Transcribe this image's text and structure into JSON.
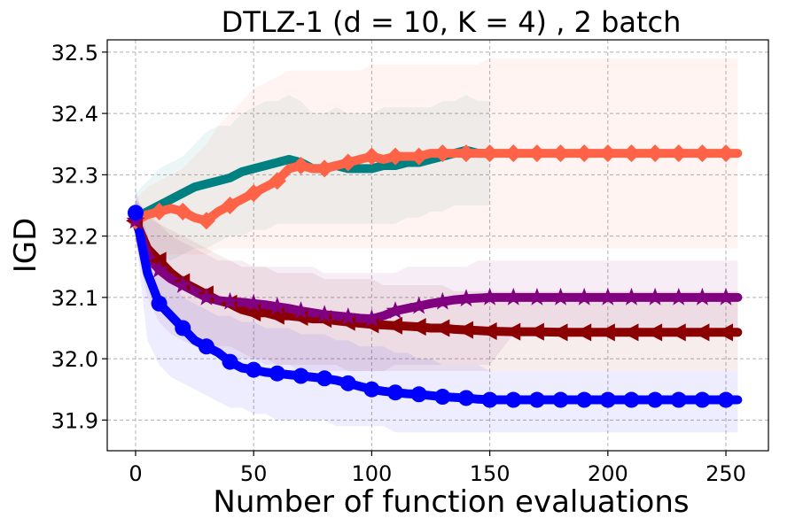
{
  "chart_data": {
    "type": "line",
    "title": "DTLZ-1 (d = 10, K = 4) , 2 batch",
    "xlabel": "Number of function evaluations",
    "ylabel": "IGD",
    "xlim": [
      -12,
      268
    ],
    "ylim": [
      31.85,
      32.52
    ],
    "xticks": [
      0,
      50,
      100,
      150,
      200,
      250
    ],
    "yticks": [
      31.9,
      32.0,
      32.1,
      32.2,
      32.3,
      32.4,
      32.5
    ],
    "xtick_labels": [
      "0",
      "50",
      "100",
      "150",
      "200",
      "250"
    ],
    "ytick_labels": [
      "31.9",
      "32.0",
      "32.1",
      "32.2",
      "32.3",
      "32.4",
      "32.5"
    ],
    "grid": true,
    "series": [
      {
        "name": "teal",
        "color": "#008080",
        "marker": "none",
        "x": [
          0,
          5,
          10,
          15,
          20,
          25,
          30,
          35,
          40,
          45,
          50,
          55,
          60,
          65,
          70,
          75,
          80,
          85,
          90,
          95,
          100,
          105,
          110,
          115,
          120,
          125,
          130,
          135,
          140,
          145,
          150
        ],
        "y": [
          32.23,
          32.24,
          32.25,
          32.26,
          32.27,
          32.28,
          32.285,
          32.29,
          32.295,
          32.305,
          32.31,
          32.315,
          32.32,
          32.325,
          32.32,
          32.31,
          32.31,
          32.315,
          32.31,
          32.31,
          32.31,
          32.315,
          32.315,
          32.32,
          32.32,
          32.325,
          32.33,
          32.335,
          32.34,
          32.335,
          32.335
        ],
        "band_lower": [
          32.2,
          32.18,
          32.17,
          32.16,
          32.17,
          32.18,
          32.18,
          32.19,
          32.2,
          32.2,
          32.21,
          32.21,
          32.22,
          32.22,
          32.22,
          32.22,
          32.22,
          32.22,
          32.22,
          32.22,
          32.22,
          32.22,
          32.22,
          32.23,
          32.23,
          32.24,
          32.24,
          32.25,
          32.25,
          32.25,
          32.25
        ],
        "band_upper": [
          32.27,
          32.29,
          32.31,
          32.32,
          32.33,
          32.35,
          32.37,
          32.38,
          32.38,
          32.4,
          32.41,
          32.42,
          32.42,
          32.43,
          32.42,
          32.4,
          32.4,
          32.41,
          32.4,
          32.4,
          32.4,
          32.41,
          32.41,
          32.41,
          32.41,
          32.41,
          32.42,
          32.42,
          32.43,
          32.42,
          32.42
        ]
      },
      {
        "name": "coral",
        "color": "#FF6347",
        "marker": "diamond",
        "x": [
          0,
          5,
          10,
          15,
          20,
          25,
          30,
          35,
          40,
          45,
          50,
          55,
          60,
          65,
          70,
          75,
          80,
          85,
          90,
          95,
          100,
          105,
          110,
          115,
          120,
          125,
          130,
          135,
          140,
          145,
          150,
          160,
          170,
          180,
          190,
          200,
          210,
          220,
          230,
          240,
          250,
          255
        ],
        "y": [
          32.225,
          32.235,
          32.24,
          32.245,
          32.24,
          32.23,
          32.225,
          32.24,
          32.25,
          32.26,
          32.27,
          32.28,
          32.29,
          32.31,
          32.315,
          32.31,
          32.31,
          32.315,
          32.32,
          32.325,
          32.33,
          32.325,
          32.33,
          32.33,
          32.33,
          32.335,
          32.335,
          32.335,
          32.335,
          32.335,
          32.335,
          32.335,
          32.335,
          32.335,
          32.335,
          32.335,
          32.335,
          32.335,
          32.335,
          32.335,
          32.335,
          32.335
        ],
        "band_lower": [
          32.19,
          32.18,
          32.17,
          32.17,
          32.17,
          32.17,
          32.17,
          32.18,
          32.18,
          32.18,
          32.18,
          32.18,
          32.18,
          32.18,
          32.18,
          32.18,
          32.18,
          32.18,
          32.18,
          32.18,
          32.18,
          32.18,
          32.18,
          32.18,
          32.18,
          32.18,
          32.18,
          32.18,
          32.18,
          32.18,
          32.18,
          32.18,
          32.18,
          32.18,
          32.18,
          32.18,
          32.18,
          32.18,
          32.18,
          32.18,
          32.18,
          32.18
        ],
        "band_upper": [
          32.26,
          32.28,
          32.29,
          32.3,
          32.31,
          32.33,
          32.35,
          32.38,
          32.4,
          32.42,
          32.44,
          32.45,
          32.46,
          32.47,
          32.47,
          32.47,
          32.47,
          32.47,
          32.47,
          32.47,
          32.48,
          32.48,
          32.48,
          32.48,
          32.48,
          32.48,
          32.48,
          32.48,
          32.48,
          32.48,
          32.49,
          32.49,
          32.49,
          32.49,
          32.49,
          32.49,
          32.49,
          32.49,
          32.49,
          32.49,
          32.49,
          32.49
        ]
      },
      {
        "name": "darkred",
        "color": "#8B0000",
        "marker": "triangle-left",
        "x": [
          0,
          5,
          10,
          15,
          20,
          25,
          30,
          35,
          40,
          45,
          50,
          55,
          60,
          65,
          70,
          75,
          80,
          85,
          90,
          95,
          100,
          105,
          110,
          115,
          120,
          125,
          130,
          135,
          140,
          145,
          150,
          160,
          170,
          180,
          190,
          200,
          210,
          220,
          230,
          240,
          250,
          255
        ],
        "y": [
          32.225,
          32.18,
          32.16,
          32.14,
          32.125,
          32.115,
          32.105,
          32.095,
          32.09,
          32.08,
          32.075,
          32.075,
          32.07,
          32.07,
          32.068,
          32.065,
          32.065,
          32.062,
          32.06,
          32.058,
          32.056,
          32.055,
          32.054,
          32.053,
          32.052,
          32.05,
          32.05,
          32.048,
          32.047,
          32.046,
          32.045,
          32.044,
          32.044,
          32.043,
          32.043,
          32.043,
          32.043,
          32.043,
          32.043,
          32.043,
          32.043,
          32.043
        ],
        "band_lower": [
          32.19,
          32.13,
          32.1,
          32.07,
          32.05,
          32.04,
          32.03,
          32.02,
          32.02,
          32.01,
          32.0,
          32.0,
          31.99,
          31.99,
          31.99,
          31.99,
          31.99,
          31.99,
          31.98,
          31.98,
          31.98,
          31.98,
          31.98,
          31.98,
          31.98,
          31.98,
          31.98,
          31.98,
          31.98,
          31.98,
          31.98,
          31.98,
          31.98,
          31.98,
          31.98,
          31.98,
          31.98,
          31.98,
          31.98,
          31.98,
          31.98,
          31.98
        ],
        "band_upper": [
          32.26,
          32.24,
          32.22,
          32.21,
          32.2,
          32.19,
          32.18,
          32.17,
          32.16,
          32.15,
          32.15,
          32.15,
          32.14,
          32.14,
          32.14,
          32.14,
          32.13,
          32.13,
          32.13,
          32.13,
          32.13,
          32.12,
          32.12,
          32.12,
          32.12,
          32.12,
          32.12,
          32.11,
          32.11,
          32.11,
          32.11,
          32.11,
          32.11,
          32.11,
          32.11,
          32.11,
          32.11,
          32.11,
          32.11,
          32.11,
          32.11,
          32.11
        ]
      },
      {
        "name": "purple",
        "color": "#800080",
        "marker": "star",
        "x": [
          0,
          5,
          10,
          15,
          20,
          25,
          30,
          35,
          40,
          45,
          50,
          55,
          60,
          65,
          70,
          75,
          80,
          85,
          90,
          95,
          100,
          105,
          110,
          115,
          120,
          125,
          130,
          135,
          140,
          145,
          150,
          160,
          170,
          180,
          190,
          200,
          210,
          220,
          230,
          240,
          250,
          255
        ],
        "y": [
          32.225,
          32.17,
          32.145,
          32.13,
          32.12,
          32.11,
          32.1,
          32.095,
          32.093,
          32.092,
          32.09,
          32.088,
          32.085,
          32.082,
          32.078,
          32.075,
          32.072,
          32.07,
          32.068,
          32.066,
          32.065,
          32.07,
          32.078,
          32.082,
          32.086,
          32.09,
          32.093,
          32.096,
          32.098,
          32.099,
          32.1,
          32.1,
          32.1,
          32.1,
          32.1,
          32.1,
          32.1,
          32.1,
          32.1,
          32.1,
          32.1,
          32.1
        ],
        "band_lower": [
          32.19,
          32.1,
          32.06,
          32.04,
          32.03,
          32.02,
          32.01,
          32.01,
          32.0,
          32.0,
          32.0,
          31.99,
          31.99,
          31.99,
          31.98,
          31.98,
          31.98,
          31.98,
          31.98,
          31.98,
          31.98,
          31.98,
          31.99,
          31.99,
          31.99,
          31.99,
          31.99,
          31.99,
          31.99,
          31.99,
          31.99,
          32.04,
          32.04,
          32.04,
          32.04,
          32.04,
          32.04,
          32.04,
          32.04,
          32.04,
          32.04,
          32.04
        ],
        "band_upper": [
          32.26,
          32.23,
          32.22,
          32.2,
          32.19,
          32.18,
          32.17,
          32.16,
          32.16,
          32.16,
          32.15,
          32.15,
          32.15,
          32.15,
          32.15,
          32.15,
          32.14,
          32.14,
          32.14,
          32.14,
          32.14,
          32.14,
          32.14,
          32.15,
          32.15,
          32.15,
          32.15,
          32.15,
          32.15,
          32.16,
          32.16,
          32.16,
          32.16,
          32.16,
          32.16,
          32.16,
          32.16,
          32.16,
          32.16,
          32.16,
          32.16,
          32.16
        ]
      },
      {
        "name": "blue",
        "color": "#0000FF",
        "marker": "circle",
        "x": [
          0,
          5,
          10,
          15,
          20,
          25,
          30,
          35,
          40,
          45,
          50,
          55,
          60,
          65,
          70,
          75,
          80,
          85,
          90,
          95,
          100,
          105,
          110,
          115,
          120,
          125,
          130,
          135,
          140,
          145,
          150,
          160,
          170,
          180,
          190,
          200,
          210,
          220,
          230,
          240,
          250,
          255
        ],
        "y": [
          32.238,
          32.14,
          32.09,
          32.07,
          32.05,
          32.03,
          32.02,
          32.01,
          31.995,
          31.985,
          31.982,
          31.978,
          31.976,
          31.974,
          31.972,
          31.97,
          31.968,
          31.965,
          31.96,
          31.955,
          31.95,
          31.947,
          31.945,
          31.943,
          31.942,
          31.94,
          31.938,
          31.937,
          31.936,
          31.934,
          31.933,
          31.933,
          31.933,
          31.933,
          31.933,
          31.933,
          31.933,
          31.933,
          31.933,
          31.933,
          31.933,
          31.933
        ],
        "band_lower": [
          32.2,
          32.03,
          31.99,
          31.97,
          31.96,
          31.95,
          31.94,
          31.93,
          31.92,
          31.92,
          31.91,
          31.91,
          31.9,
          31.9,
          31.9,
          31.9,
          31.9,
          31.89,
          31.89,
          31.89,
          31.89,
          31.89,
          31.88,
          31.88,
          31.88,
          31.88,
          31.88,
          31.88,
          31.88,
          31.88,
          31.88,
          31.88,
          31.88,
          31.88,
          31.88,
          31.88,
          31.88,
          31.88,
          31.88,
          31.88,
          31.88,
          31.88
        ],
        "band_upper": [
          32.28,
          32.2,
          32.15,
          32.13,
          32.1,
          32.09,
          32.08,
          32.07,
          32.07,
          32.06,
          32.06,
          32.05,
          32.05,
          32.05,
          32.04,
          32.04,
          32.04,
          32.03,
          32.03,
          32.02,
          32.02,
          32.02,
          32.01,
          32.01,
          32.0,
          32.0,
          31.99,
          31.99,
          31.99,
          31.99,
          31.98,
          31.98,
          31.98,
          31.98,
          31.98,
          31.98,
          31.98,
          31.98,
          31.98,
          31.98,
          31.98,
          31.98
        ]
      }
    ]
  }
}
